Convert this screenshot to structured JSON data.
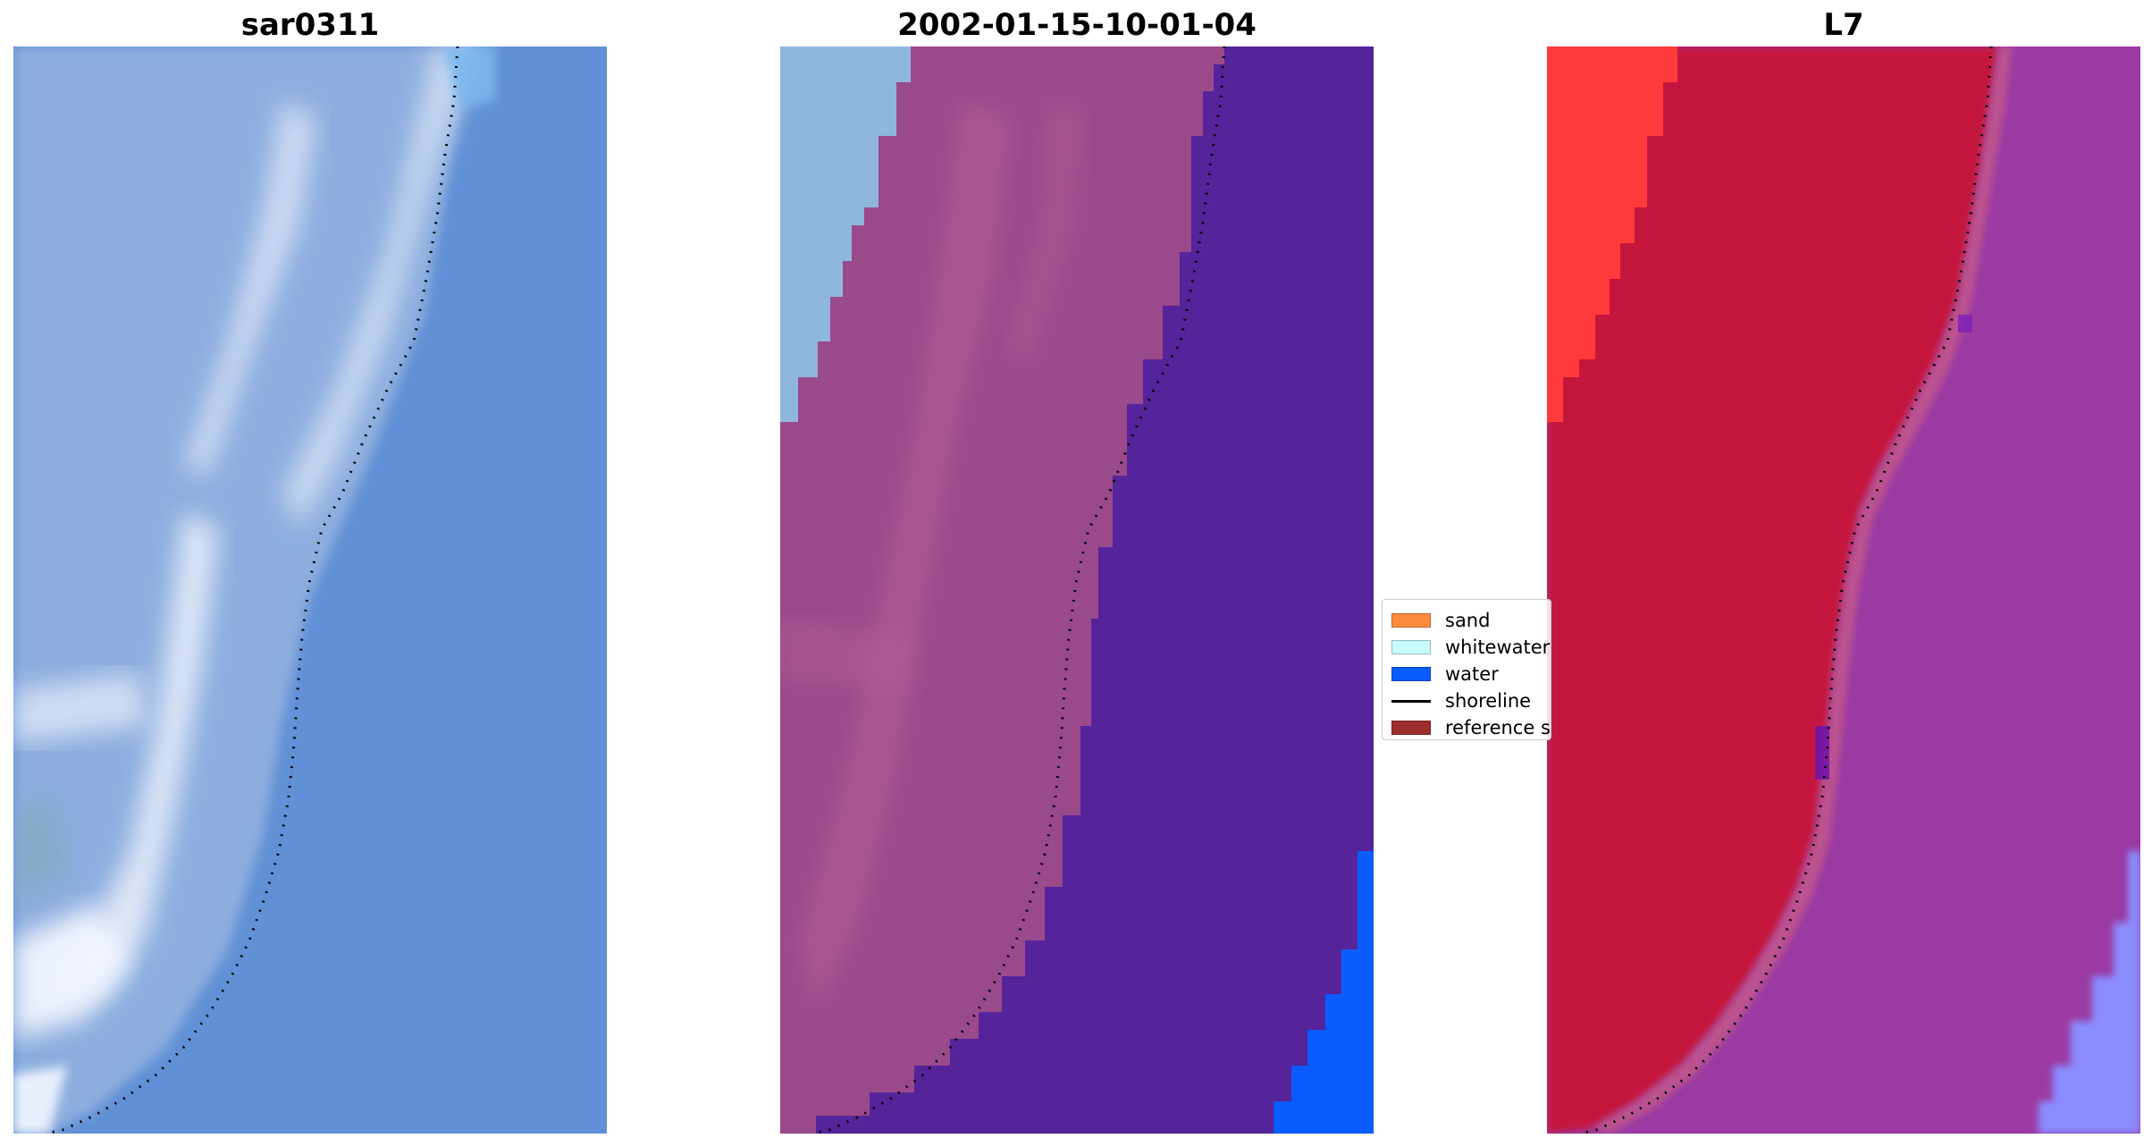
{
  "panels": [
    {
      "title": "sar0311"
    },
    {
      "title": "2002-01-15-10-01-04"
    },
    {
      "title": "L7"
    }
  ],
  "legend": {
    "items": [
      {
        "label": "sand",
        "color": "#ff8c3d",
        "kind": "patch"
      },
      {
        "label": "whitewater",
        "color": "#c8fbfb",
        "kind": "patch"
      },
      {
        "label": "water",
        "color": "#0a5cff",
        "kind": "patch"
      },
      {
        "label": "shoreline",
        "color": "#000000",
        "kind": "line"
      },
      {
        "label": "reference shoreline",
        "color": "#9b2d2d",
        "kind": "patch"
      }
    ]
  },
  "colors": {
    "rgb_sea": "#5f8fd8",
    "rgb_land": "#8fb0e0",
    "rgb_white": "#dbe6f7",
    "class_land_pink": "#9a4a8a",
    "class_pink_light": "#b25a95",
    "class_water_purple": "#55239a",
    "class_whitewater_blue": "#8fb7dd",
    "class_bright_water": "#0a5cff",
    "mndwi_red": "#c4143c",
    "mndwi_bright_red": "#ff3a3a",
    "mndwi_purple": "#9a3aa0",
    "mndwi_light_blue": "#8a8cff"
  }
}
